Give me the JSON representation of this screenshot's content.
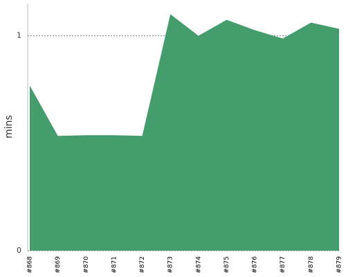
{
  "chart_data": {
    "type": "area",
    "ylabel": "mins",
    "categories": [
      "#868",
      "#869",
      "#870",
      "#871",
      "#872",
      "#873",
      "#874",
      "#875",
      "#876",
      "#877",
      "#878",
      "#879"
    ],
    "values": [
      0.768,
      0.534,
      0.537,
      0.537,
      0.534,
      1.1,
      1.0,
      1.074,
      1.026,
      0.987,
      1.061,
      1.032
    ],
    "color": "#459c6c",
    "ylim": [
      0,
      1.15
    ],
    "yticks": [
      0,
      1
    ],
    "grid": true
  }
}
